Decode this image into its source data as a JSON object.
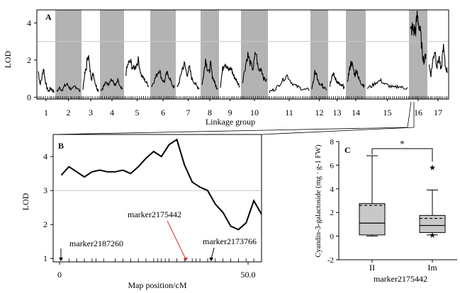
{
  "colors": {
    "band": "#b3b3b3",
    "line": "#000000",
    "threshold": "#c8c8c8",
    "marker_highlight": "#d62b2b",
    "box_fill": "#c8c8c8"
  },
  "chart_data": [
    {
      "panel": "A",
      "type": "line",
      "ylabel": "LOD",
      "xlabel": "Linkage group",
      "ylim": [
        -0.1,
        4.7
      ],
      "yticks": [
        "0",
        "2",
        "4"
      ],
      "threshold": 3,
      "linkage_groups": [
        "1",
        "2",
        "3",
        "4",
        "5",
        "6",
        "7",
        "8",
        "9",
        "10",
        "11",
        "12",
        "13",
        "14",
        "15",
        "16",
        "17"
      ],
      "shaded_groups": [
        "2",
        "4",
        "6",
        "8",
        "10",
        "12",
        "14",
        "16"
      ],
      "group_profiles": [
        {
          "group": "1",
          "lod": [
            1.4,
            0.7,
            1.0,
            1.6,
            0.9,
            0.5,
            0.3,
            0.5,
            0.4,
            0.3
          ]
        },
        {
          "group": "2",
          "lod": [
            0.3,
            0.5,
            0.4,
            0.6,
            0.7,
            0.5,
            0.4,
            0.6,
            0.5,
            0.3
          ]
        },
        {
          "group": "3",
          "lod": [
            0.5,
            1.2,
            1.6,
            2.4,
            1.5,
            1.0,
            1.3,
            0.8,
            0.5,
            0.4
          ]
        },
        {
          "group": "4",
          "lod": [
            0.4,
            0.6,
            0.8,
            0.7,
            1.0,
            0.8,
            0.6,
            0.9,
            0.5,
            0.4
          ]
        },
        {
          "group": "5",
          "lod": [
            1.2,
            1.8,
            1.9,
            1.5,
            1.7,
            2.0,
            1.2,
            1.0,
            0.8,
            0.6
          ]
        },
        {
          "group": "6",
          "lod": [
            0.6,
            0.9,
            1.2,
            1.5,
            1.0,
            0.8,
            1.3,
            1.1,
            0.7,
            0.5
          ]
        },
        {
          "group": "7",
          "lod": [
            0.5,
            0.9,
            1.5,
            1.8,
            1.2,
            1.6,
            1.0,
            0.8,
            0.6,
            0.5
          ]
        },
        {
          "group": "8",
          "lod": [
            0.7,
            1.2,
            2.1,
            1.6,
            1.3,
            1.8,
            1.1,
            0.9,
            0.6,
            0.5
          ]
        },
        {
          "group": "9",
          "lod": [
            0.6,
            1.5,
            1.9,
            1.7,
            1.4,
            1.6,
            1.2,
            1.0,
            0.8,
            0.6
          ]
        },
        {
          "group": "10",
          "lod": [
            0.8,
            1.6,
            2.3,
            1.8,
            1.5,
            2.5,
            1.4,
            1.6,
            1.0,
            0.9
          ]
        },
        {
          "group": "11",
          "lod": [
            0.3,
            0.4,
            0.6,
            0.9,
            1.2,
            0.8,
            0.6,
            0.5,
            0.4,
            0.4
          ]
        },
        {
          "group": "12",
          "lod": [
            0.5,
            0.9,
            1.4,
            1.1,
            0.8,
            0.6,
            0.7,
            0.5,
            0.6,
            0.4
          ]
        },
        {
          "group": "13",
          "lod": [
            0.6,
            1.0,
            1.3,
            1.1,
            0.9,
            0.8,
            0.7,
            0.6,
            0.6,
            0.5
          ]
        },
        {
          "group": "14",
          "lod": [
            0.8,
            1.4,
            1.9,
            1.6,
            1.2,
            1.5,
            1.0,
            0.8,
            0.7,
            0.6
          ]
        },
        {
          "group": "15",
          "lod": [
            0.5,
            0.6,
            0.8,
            0.9,
            0.7,
            0.6,
            0.5,
            0.6,
            0.5,
            0.5
          ]
        },
        {
          "group": "16",
          "lod": [
            3.5,
            3.7,
            3.6,
            3.6,
            4.4,
            3.9,
            3.3,
            2.3,
            1.9,
            2.4
          ]
        },
        {
          "group": "17",
          "lod": [
            1.8,
            1.2,
            2.0,
            2.6,
            1.6,
            2.2,
            1.3,
            2.8,
            1.7,
            1.4
          ]
        }
      ]
    },
    {
      "panel": "B",
      "type": "line",
      "ylabel": "LOD",
      "xlabel": "Map position/cM",
      "xlim": [
        0,
        53
      ],
      "ylim": [
        0.9,
        4.65
      ],
      "xticks": [
        {
          "value": 0,
          "label": "0"
        },
        {
          "value": 50,
          "label": "50.0"
        }
      ],
      "yticks": [
        "1",
        "2",
        "3",
        "4"
      ],
      "threshold": 3,
      "x": [
        1,
        3,
        5,
        7,
        9,
        11,
        13,
        15,
        17,
        19,
        21,
        23,
        25,
        27,
        29,
        31,
        33,
        35,
        37,
        39,
        41,
        43,
        45,
        47,
        49,
        51,
        53
      ],
      "y": [
        3.45,
        3.7,
        3.55,
        3.4,
        3.55,
        3.6,
        3.55,
        3.55,
        3.6,
        3.5,
        3.7,
        3.95,
        4.15,
        4.0,
        4.35,
        4.5,
        3.75,
        3.25,
        3.1,
        3.0,
        2.6,
        2.35,
        1.95,
        1.85,
        2.05,
        2.7,
        2.3
      ],
      "markers": [
        {
          "label": "marker2187260",
          "position": 1,
          "highlight": false
        },
        {
          "label": "marker2175442",
          "position": 28,
          "highlight": true
        },
        {
          "label": "marker2173766",
          "position": 36,
          "highlight": false
        }
      ],
      "marker_ticks": [
        3,
        5,
        7,
        9,
        10,
        12,
        15,
        17,
        19,
        21,
        23,
        25,
        26,
        27,
        28,
        29,
        31,
        33,
        35,
        36,
        37,
        39,
        41,
        43,
        45,
        47,
        49,
        51
      ]
    },
    {
      "panel": "C",
      "type": "box",
      "ylabel": "Cyandin-3-galactoside (mg · g-1 FW)",
      "xlabel": "marker2175442",
      "ylim": [
        -2,
        8
      ],
      "yticks": [
        "-2",
        "0",
        "2",
        "4",
        "6",
        "8"
      ],
      "categories": [
        "II",
        "Im"
      ],
      "boxes": [
        {
          "category": "II",
          "min": 0,
          "q1": 0.1,
          "median": 1.1,
          "mean": 2.6,
          "q3": 2.75,
          "max": 6.8,
          "outliers": []
        },
        {
          "category": "Im",
          "min": 0.1,
          "q1": 0.3,
          "median": 0.9,
          "mean": 1.5,
          "q3": 1.75,
          "max": 3.9,
          "outliers": [
            0.1,
            5.8
          ]
        }
      ],
      "significance": "*"
    }
  ],
  "labels": {
    "panel_a": "A",
    "panel_b": "B",
    "panel_c": "C"
  }
}
